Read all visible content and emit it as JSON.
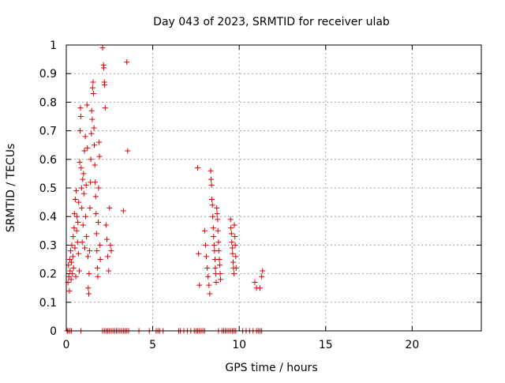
{
  "chart_data": {
    "type": "scatter",
    "title": "Day 043 of 2023, SRMTID for receiver ulab",
    "xlabel": "GPS time / hours",
    "ylabel": "SRMTID / TECUs",
    "xlim": [
      0,
      24
    ],
    "ylim": [
      0,
      1
    ],
    "xticks": [
      0,
      5,
      10,
      15,
      20
    ],
    "xtick_labels": [
      "0",
      "5",
      "10",
      "15",
      "20"
    ],
    "yticks": [
      0,
      0.1,
      0.2,
      0.3,
      0.4,
      0.5,
      0.6,
      0.7,
      0.8,
      0.9,
      1
    ],
    "ytick_labels": [
      "0",
      "0.1",
      "0.2",
      "0.3",
      "0.4",
      "0.5",
      "0.6",
      "0.7",
      "0.8",
      "0.9",
      "1"
    ],
    "grid": true,
    "marker": "+",
    "series": [
      {
        "name": "SRMTID",
        "color": "#dd0000",
        "points": [
          [
            0.1,
            0.17
          ],
          [
            0.12,
            0.23
          ],
          [
            0.15,
            0.19
          ],
          [
            0.18,
            0.14
          ],
          [
            0.2,
            0.25
          ],
          [
            0.22,
            0.21
          ],
          [
            0.25,
            0.28
          ],
          [
            0.28,
            0.18
          ],
          [
            0.3,
            0.24
          ],
          [
            0.32,
            0.3
          ],
          [
            0.35,
            0.2
          ],
          [
            0.38,
            0.26
          ],
          [
            0.4,
            0.33
          ],
          [
            0.42,
            0.22
          ],
          [
            0.45,
            0.36
          ],
          [
            0.47,
            0.41
          ],
          [
            0.5,
            0.29
          ],
          [
            0.52,
            0.46
          ],
          [
            0.55,
            0.19
          ],
          [
            0.57,
            0.49
          ],
          [
            0.6,
            0.35
          ],
          [
            0.62,
            0.4
          ],
          [
            0.65,
            0.31
          ],
          [
            0.67,
            0.38
          ],
          [
            0.7,
            0.27
          ],
          [
            0.72,
            0.45
          ],
          [
            0.75,
            0.21
          ],
          [
            0.78,
            0.59
          ],
          [
            0.8,
            0.7
          ],
          [
            0.82,
            0.78
          ],
          [
            0.84,
            0.75
          ],
          [
            0.86,
            0.57
          ],
          [
            0.88,
            0.5
          ],
          [
            0.9,
            0.43
          ],
          [
            0.92,
            0.31
          ],
          [
            0.95,
            0.53
          ],
          [
            0.97,
            0.37
          ],
          [
            1.0,
            0.55
          ],
          [
            1.02,
            0.48
          ],
          [
            1.05,
            0.63
          ],
          [
            1.07,
            0.29
          ],
          [
            1.1,
            0.68
          ],
          [
            1.12,
            0.4
          ],
          [
            1.15,
            0.51
          ],
          [
            1.17,
            0.33
          ],
          [
            1.2,
            0.79
          ],
          [
            1.22,
            0.64
          ],
          [
            1.25,
            0.26
          ],
          [
            1.27,
            0.15
          ],
          [
            1.3,
            0.13
          ],
          [
            1.32,
            0.2
          ],
          [
            1.35,
            0.28
          ],
          [
            1.37,
            0.43
          ],
          [
            1.4,
            0.52
          ],
          [
            1.42,
            0.6
          ],
          [
            1.45,
            0.69
          ],
          [
            1.47,
            0.77
          ],
          [
            1.5,
            0.74
          ],
          [
            1.52,
            0.85
          ],
          [
            1.55,
            0.87
          ],
          [
            1.57,
            0.83
          ],
          [
            1.6,
            0.71
          ],
          [
            1.62,
            0.65
          ],
          [
            1.65,
            0.58
          ],
          [
            1.67,
            0.52
          ],
          [
            1.7,
            0.47
          ],
          [
            1.72,
            0.41
          ],
          [
            1.75,
            0.34
          ],
          [
            1.77,
            0.28
          ],
          [
            1.8,
            0.22
          ],
          [
            1.82,
            0.19
          ],
          [
            1.85,
            0.38
          ],
          [
            1.87,
            0.5
          ],
          [
            1.9,
            0.66
          ],
          [
            1.92,
            0.61
          ],
          [
            1.95,
            0.3
          ],
          [
            1.97,
            0.25
          ],
          [
            2.1,
            0.99
          ],
          [
            2.15,
            0.93
          ],
          [
            2.17,
            0.92
          ],
          [
            2.2,
            0.87
          ],
          [
            2.22,
            0.86
          ],
          [
            2.25,
            0.78
          ],
          [
            2.3,
            0.37
          ],
          [
            2.35,
            0.32
          ],
          [
            2.4,
            0.26
          ],
          [
            2.45,
            0.21
          ],
          [
            2.5,
            0.43
          ],
          [
            2.55,
            0.3
          ],
          [
            2.6,
            0.28
          ],
          [
            3.3,
            0.42
          ],
          [
            3.5,
            0.94
          ],
          [
            3.55,
            0.63
          ],
          [
            7.6,
            0.57
          ],
          [
            7.65,
            0.27
          ],
          [
            7.7,
            0.16
          ],
          [
            8.0,
            0.35
          ],
          [
            8.05,
            0.3
          ],
          [
            8.1,
            0.26
          ],
          [
            8.15,
            0.22
          ],
          [
            8.2,
            0.19
          ],
          [
            8.25,
            0.16
          ],
          [
            8.3,
            0.13
          ],
          [
            8.35,
            0.56
          ],
          [
            8.37,
            0.53
          ],
          [
            8.4,
            0.51
          ],
          [
            8.42,
            0.46
          ],
          [
            8.45,
            0.44
          ],
          [
            8.47,
            0.4
          ],
          [
            8.5,
            0.36
          ],
          [
            8.52,
            0.33
          ],
          [
            8.55,
            0.3
          ],
          [
            8.57,
            0.28
          ],
          [
            8.6,
            0.25
          ],
          [
            8.62,
            0.22
          ],
          [
            8.65,
            0.2
          ],
          [
            8.67,
            0.17
          ],
          [
            8.7,
            0.43
          ],
          [
            8.72,
            0.41
          ],
          [
            8.75,
            0.39
          ],
          [
            8.77,
            0.35
          ],
          [
            8.8,
            0.31
          ],
          [
            8.82,
            0.28
          ],
          [
            8.85,
            0.25
          ],
          [
            8.87,
            0.23
          ],
          [
            8.9,
            0.2
          ],
          [
            8.92,
            0.18
          ],
          [
            9.5,
            0.39
          ],
          [
            9.52,
            0.36
          ],
          [
            9.55,
            0.34
          ],
          [
            9.57,
            0.31
          ],
          [
            9.6,
            0.29
          ],
          [
            9.62,
            0.27
          ],
          [
            9.65,
            0.24
          ],
          [
            9.67,
            0.22
          ],
          [
            9.7,
            0.2
          ],
          [
            9.72,
            0.37
          ],
          [
            9.75,
            0.33
          ],
          [
            9.77,
            0.3
          ],
          [
            9.8,
            0.26
          ],
          [
            9.82,
            0.22
          ],
          [
            10.9,
            0.17
          ],
          [
            11.0,
            0.15
          ],
          [
            11.2,
            0.15
          ],
          [
            11.3,
            0.19
          ],
          [
            11.35,
            0.21
          ],
          [
            0.05,
            0
          ],
          [
            0.1,
            0
          ],
          [
            0.2,
            0
          ],
          [
            0.3,
            0
          ],
          [
            0.85,
            0
          ],
          [
            2.1,
            0
          ],
          [
            2.2,
            0
          ],
          [
            2.3,
            0
          ],
          [
            2.4,
            0
          ],
          [
            2.5,
            0
          ],
          [
            2.6,
            0
          ],
          [
            2.7,
            0
          ],
          [
            2.8,
            0
          ],
          [
            2.9,
            0
          ],
          [
            3.0,
            0
          ],
          [
            3.1,
            0
          ],
          [
            3.2,
            0
          ],
          [
            3.3,
            0
          ],
          [
            3.4,
            0
          ],
          [
            3.5,
            0
          ],
          [
            3.6,
            0
          ],
          [
            4.2,
            0
          ],
          [
            4.8,
            0
          ],
          [
            5.2,
            0
          ],
          [
            5.3,
            0
          ],
          [
            5.4,
            0
          ],
          [
            5.6,
            0
          ],
          [
            6.5,
            0
          ],
          [
            6.6,
            0
          ],
          [
            6.8,
            0
          ],
          [
            7.0,
            0
          ],
          [
            7.2,
            0
          ],
          [
            7.4,
            0
          ],
          [
            7.5,
            0
          ],
          [
            7.6,
            0
          ],
          [
            7.7,
            0
          ],
          [
            7.8,
            0
          ],
          [
            7.9,
            0
          ],
          [
            8.0,
            0
          ],
          [
            8.8,
            0
          ],
          [
            9.0,
            0
          ],
          [
            9.1,
            0
          ],
          [
            9.2,
            0
          ],
          [
            9.3,
            0
          ],
          [
            9.4,
            0
          ],
          [
            9.5,
            0
          ],
          [
            9.6,
            0
          ],
          [
            9.7,
            0
          ],
          [
            9.8,
            0
          ],
          [
            10.2,
            0
          ],
          [
            10.4,
            0
          ],
          [
            10.6,
            0
          ],
          [
            10.8,
            0
          ],
          [
            11.0,
            0
          ],
          [
            11.1,
            0
          ],
          [
            11.2,
            0
          ],
          [
            11.3,
            0
          ]
        ]
      }
    ]
  }
}
